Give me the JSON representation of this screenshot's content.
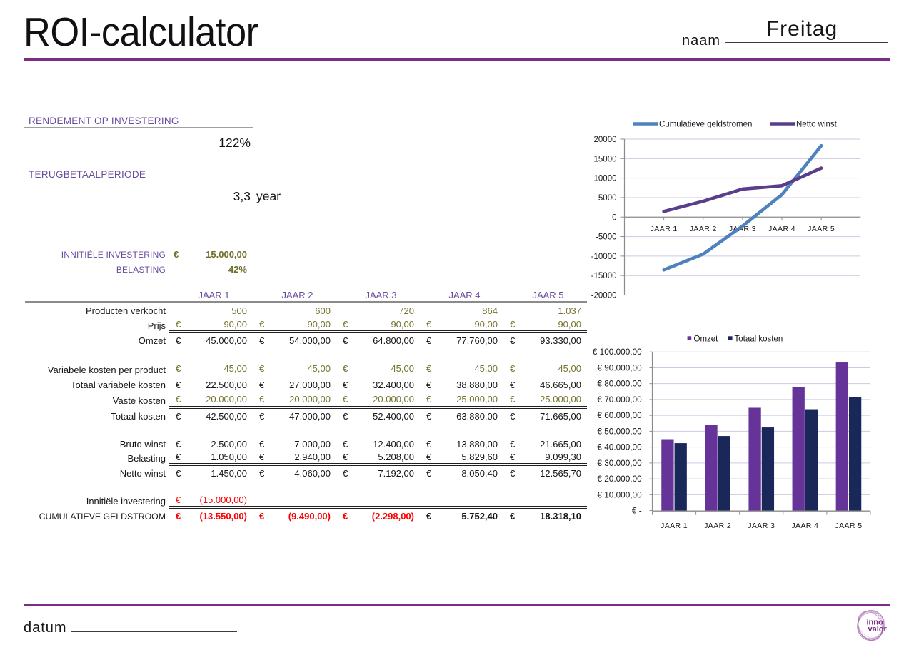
{
  "title": "ROI-calculator",
  "header": {
    "name_label": "naam",
    "name_value": "Freitag"
  },
  "footer": {
    "date_label": "datum",
    "logo_line1": "inno",
    "logo_line2": "valor"
  },
  "summary": {
    "roi_heading": "RENDEMENT OP INVESTERING",
    "roi_value": "122%",
    "payback_heading": "TERUGBETAALPERIODE",
    "payback_value": "3,3",
    "payback_unit": "year",
    "investment_label": "INNITIËLE INVESTERING",
    "investment_euro": "€",
    "investment_value": "15.000,00",
    "tax_label": "BELASTING",
    "tax_value": "42%"
  },
  "table": {
    "col_headers": [
      "JAAR 1",
      "JAAR 2",
      "JAAR 3",
      "JAAR 4",
      "JAAR 5"
    ],
    "rows": [
      {
        "label": "Producten verkocht",
        "euro": false,
        "value_class": "c-olive",
        "values": [
          "500",
          "600",
          "720",
          "864",
          "1.037"
        ]
      },
      {
        "label": "Prijs",
        "euro": true,
        "value_class": "c-olive",
        "divider": true,
        "values": [
          "90,00",
          "90,00",
          "90,00",
          "90,00",
          "90,00"
        ]
      },
      {
        "label": "Omzet",
        "euro": true,
        "value_class": "c-black",
        "values": [
          "45.000,00",
          "54.000,00",
          "64.800,00",
          "77.760,00",
          "93.330,00"
        ]
      },
      {
        "blank": true
      },
      {
        "label": "Variabele kosten per product",
        "euro": true,
        "value_class": "c-olive",
        "divider": true,
        "values": [
          "45,00",
          "45,00",
          "45,00",
          "45,00",
          "45,00"
        ]
      },
      {
        "label": "Totaal variabele kosten",
        "euro": true,
        "value_class": "c-black",
        "values": [
          "22.500,00",
          "27.000,00",
          "32.400,00",
          "38.880,00",
          "46.665,00"
        ]
      },
      {
        "label": "Vaste kosten",
        "euro": true,
        "value_class": "c-olive",
        "divider": true,
        "values": [
          "20.000,00",
          "20.000,00",
          "20.000,00",
          "25.000,00",
          "25.000,00"
        ]
      },
      {
        "label": "Totaal kosten",
        "euro": true,
        "value_class": "c-black",
        "values": [
          "42.500,00",
          "47.000,00",
          "52.400,00",
          "63.880,00",
          "71.665,00"
        ]
      },
      {
        "blank": true
      },
      {
        "label": "Bruto winst",
        "euro": true,
        "value_class": "c-black",
        "values": [
          "2.500,00",
          "7.000,00",
          "12.400,00",
          "13.880,00",
          "21.665,00"
        ]
      },
      {
        "label": "Belasting",
        "euro": true,
        "value_class": "c-black",
        "divider": true,
        "values": [
          "1.050,00",
          "2.940,00",
          "5.208,00",
          "5.829,60",
          "9.099,30"
        ]
      },
      {
        "label": "Netto winst",
        "euro": true,
        "value_class": "c-black",
        "values": [
          "1.450,00",
          "4.060,00",
          "7.192,00",
          "8.050,40",
          "12.565,70"
        ]
      },
      {
        "blank": true
      },
      {
        "label": "Innitiële investering",
        "euro": true,
        "value_class": "c-red",
        "divider": true,
        "values": [
          "(15.000,00)",
          "",
          "",
          "",
          ""
        ]
      },
      {
        "label": "CUMULATIEVE GELDSTROOM",
        "label_class": "c-purple",
        "euro": true,
        "bold": true,
        "cell_classes": [
          "c-red",
          "c-red",
          "c-red",
          "c-black",
          "c-black"
        ],
        "values": [
          "(13.550,00)",
          "(9.490,00)",
          "(2.298,00)",
          "5.752,40",
          "18.318,10"
        ]
      }
    ]
  },
  "chart_data": [
    {
      "type": "line",
      "categories": [
        "JAAR 1",
        "JAAR 2",
        "JAAR 3",
        "JAAR 4",
        "JAAR 5"
      ],
      "series": [
        {
          "name": "Cumulatieve geldstromen",
          "color": "#4E81BD",
          "values": [
            -13550,
            -9490,
            -2298,
            5752.4,
            18318.1
          ]
        },
        {
          "name": "Netto winst",
          "color": "#5A3E8C",
          "values": [
            1450,
            4060,
            7192,
            8050.4,
            12565.7
          ]
        }
      ],
      "ylim": [
        -20000,
        20000
      ],
      "ytick": 5000,
      "legend_position": "top",
      "grid": true
    },
    {
      "type": "bar",
      "categories": [
        "JAAR 1",
        "JAAR 2",
        "JAAR 3",
        "JAAR 4",
        "JAAR 5"
      ],
      "series": [
        {
          "name": "Omzet",
          "color": "#663399",
          "values": [
            45000,
            54000,
            64800,
            77760,
            93330
          ]
        },
        {
          "name": "Totaal kosten",
          "color": "#1A2859",
          "values": [
            42500,
            47000,
            52400,
            63880,
            71665
          ]
        }
      ],
      "ylim": [
        0,
        100000
      ],
      "ytick": 10000,
      "ytick_format": "euro",
      "legend_position": "top",
      "grid": true
    }
  ],
  "colors": {
    "accent_purple": "#7D2B87",
    "heading_purple": "#6A4C9F",
    "input_olive": "#75742D",
    "negative_red": "#FA0000",
    "line_blue": "#4E81BD",
    "line_purple": "#5A3E8C",
    "bar_purple": "#663399",
    "bar_navy": "#1A2859"
  }
}
